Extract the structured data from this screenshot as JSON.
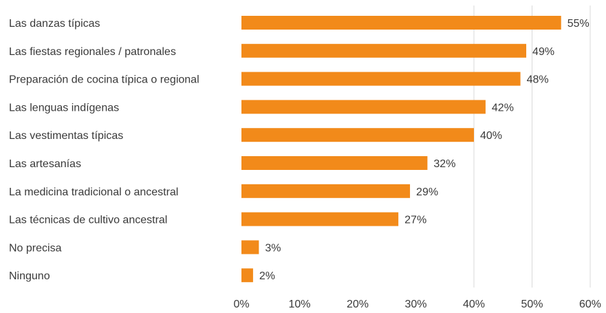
{
  "chart_data": {
    "type": "bar",
    "orientation": "horizontal",
    "categories": [
      "Las danzas típicas",
      "Las fiestas regionales / patronales",
      "Preparación de cocina típica o regional",
      "Las lenguas indígenas",
      "Las vestimentas típicas",
      "Las artesanías",
      "La medicina tradicional o ancestral",
      "Las técnicas de cultivo ancestral",
      "No precisa",
      "Ninguno"
    ],
    "values": [
      55,
      49,
      48,
      42,
      40,
      32,
      29,
      27,
      3,
      2
    ],
    "value_labels": [
      "55%",
      "49%",
      "48%",
      "42%",
      "40%",
      "32%",
      "29%",
      "27%",
      "3%",
      "2%"
    ],
    "x_ticks": [
      "0%",
      "10%",
      "20%",
      "30%",
      "40%",
      "50%",
      "60%"
    ],
    "xlim": [
      0,
      60
    ],
    "grid": "vertical lines at 40 and 50 and 60",
    "colors": {
      "bar": "#F28A1A",
      "text": "#3a3a3a",
      "grid": "#d9d9d9"
    }
  }
}
